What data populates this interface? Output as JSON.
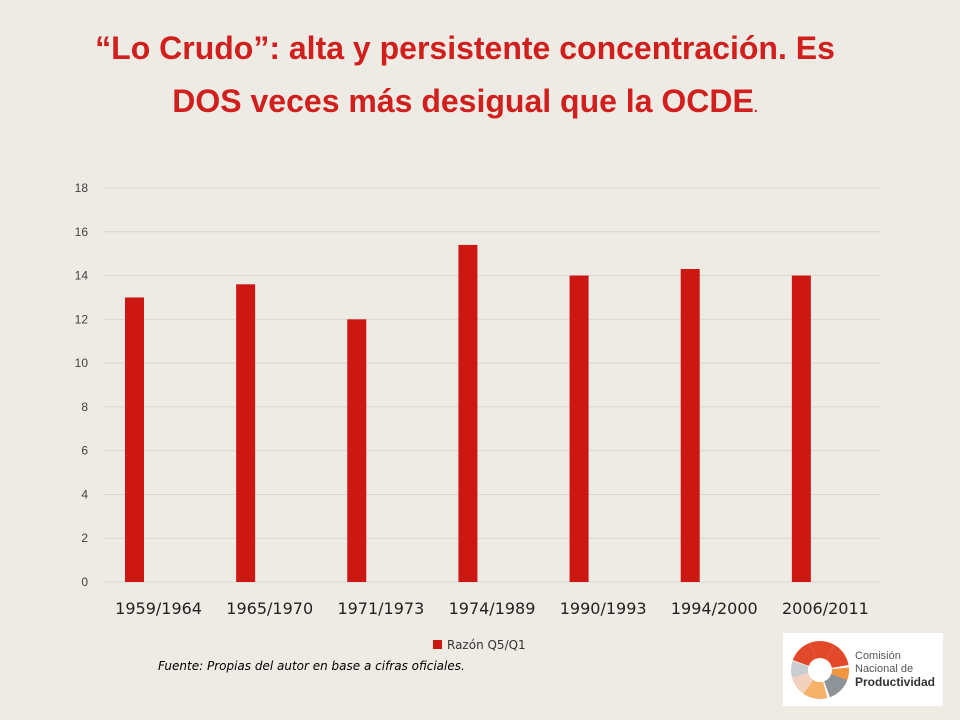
{
  "title": {
    "text": "“Lo Crudo”: alta y persistente concentración. Es DOS veces más desigual que la OCDE",
    "suffix": "."
  },
  "chart_data": {
    "type": "bar",
    "categories": [
      "1959/1964",
      "1965/1970",
      "1971/1973",
      "1974/1989",
      "1990/1993",
      "1994/2000",
      "2006/2011"
    ],
    "series": [
      {
        "name": "Razón Q5/Q1",
        "values": [
          13.0,
          13.6,
          12.0,
          15.4,
          14.0,
          14.3,
          14.0
        ],
        "color": "#cc1713"
      }
    ],
    "y_ticks": [
      "0",
      "2",
      "4",
      "6",
      "8",
      "10",
      "12",
      "14",
      "16",
      "18"
    ],
    "ylim": [
      0,
      18
    ],
    "grid": true,
    "legend": "bottom",
    "xlabel": "",
    "ylabel": ""
  },
  "source": "Fuente: Propias del autor en base a cifras oficiales.",
  "logo": {
    "line1": "Comisión",
    "line2": "Nacional de",
    "line3": "Productividad",
    "colors": [
      "#e2482a",
      "#f29440",
      "#f6b26b",
      "#f2d2bf",
      "#8d9399",
      "#c9ccd0"
    ]
  }
}
